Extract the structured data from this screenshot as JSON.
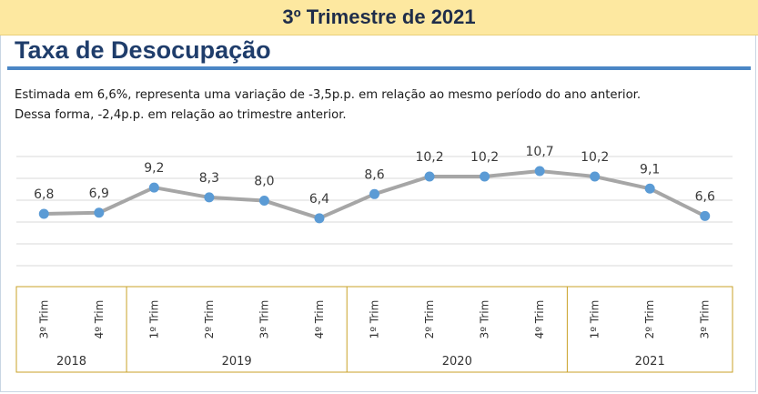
{
  "banner": {
    "text": "3º Trimestre de 2021"
  },
  "title": "Taxa de Desocupação",
  "description": {
    "line1": "Estimada em 6,6%, representa uma variação de -3,5p.p. em relação ao mesmo período do ano anterior.",
    "line2": "Dessa forma, -2,4p.p. em relação ao trimestre anterior."
  },
  "colors": {
    "banner_bg": "#fde8a0",
    "title": "#1f3d6b",
    "rule": "#4a86c5",
    "line": "#a6a6a6",
    "marker": "#5b9bd5",
    "axis_border": "#c9a227"
  },
  "chart_data": {
    "type": "line",
    "x": [
      "3º Trim",
      "4º Trim",
      "1º Trim",
      "2º Trim",
      "3º Trim",
      "4º Trim",
      "1º Trim",
      "2º Trim",
      "3º Trim",
      "4º Trim",
      "1º Trim",
      "2º Trim",
      "3º Trim"
    ],
    "years": [
      {
        "label": "2018",
        "count": 2
      },
      {
        "label": "2019",
        "count": 4
      },
      {
        "label": "2020",
        "count": 4
      },
      {
        "label": "2021",
        "count": 3
      }
    ],
    "values": [
      6.8,
      6.9,
      9.2,
      8.3,
      8.0,
      6.4,
      8.6,
      10.2,
      10.2,
      10.7,
      10.2,
      9.1,
      6.6
    ],
    "value_labels": [
      "6,8",
      "6,9",
      "9,2",
      "8,3",
      "8,0",
      "6,4",
      "8,6",
      "10,2",
      "10,2",
      "10,7",
      "10,2",
      "9,1",
      "6,6"
    ],
    "grid": true,
    "legend": "none"
  }
}
